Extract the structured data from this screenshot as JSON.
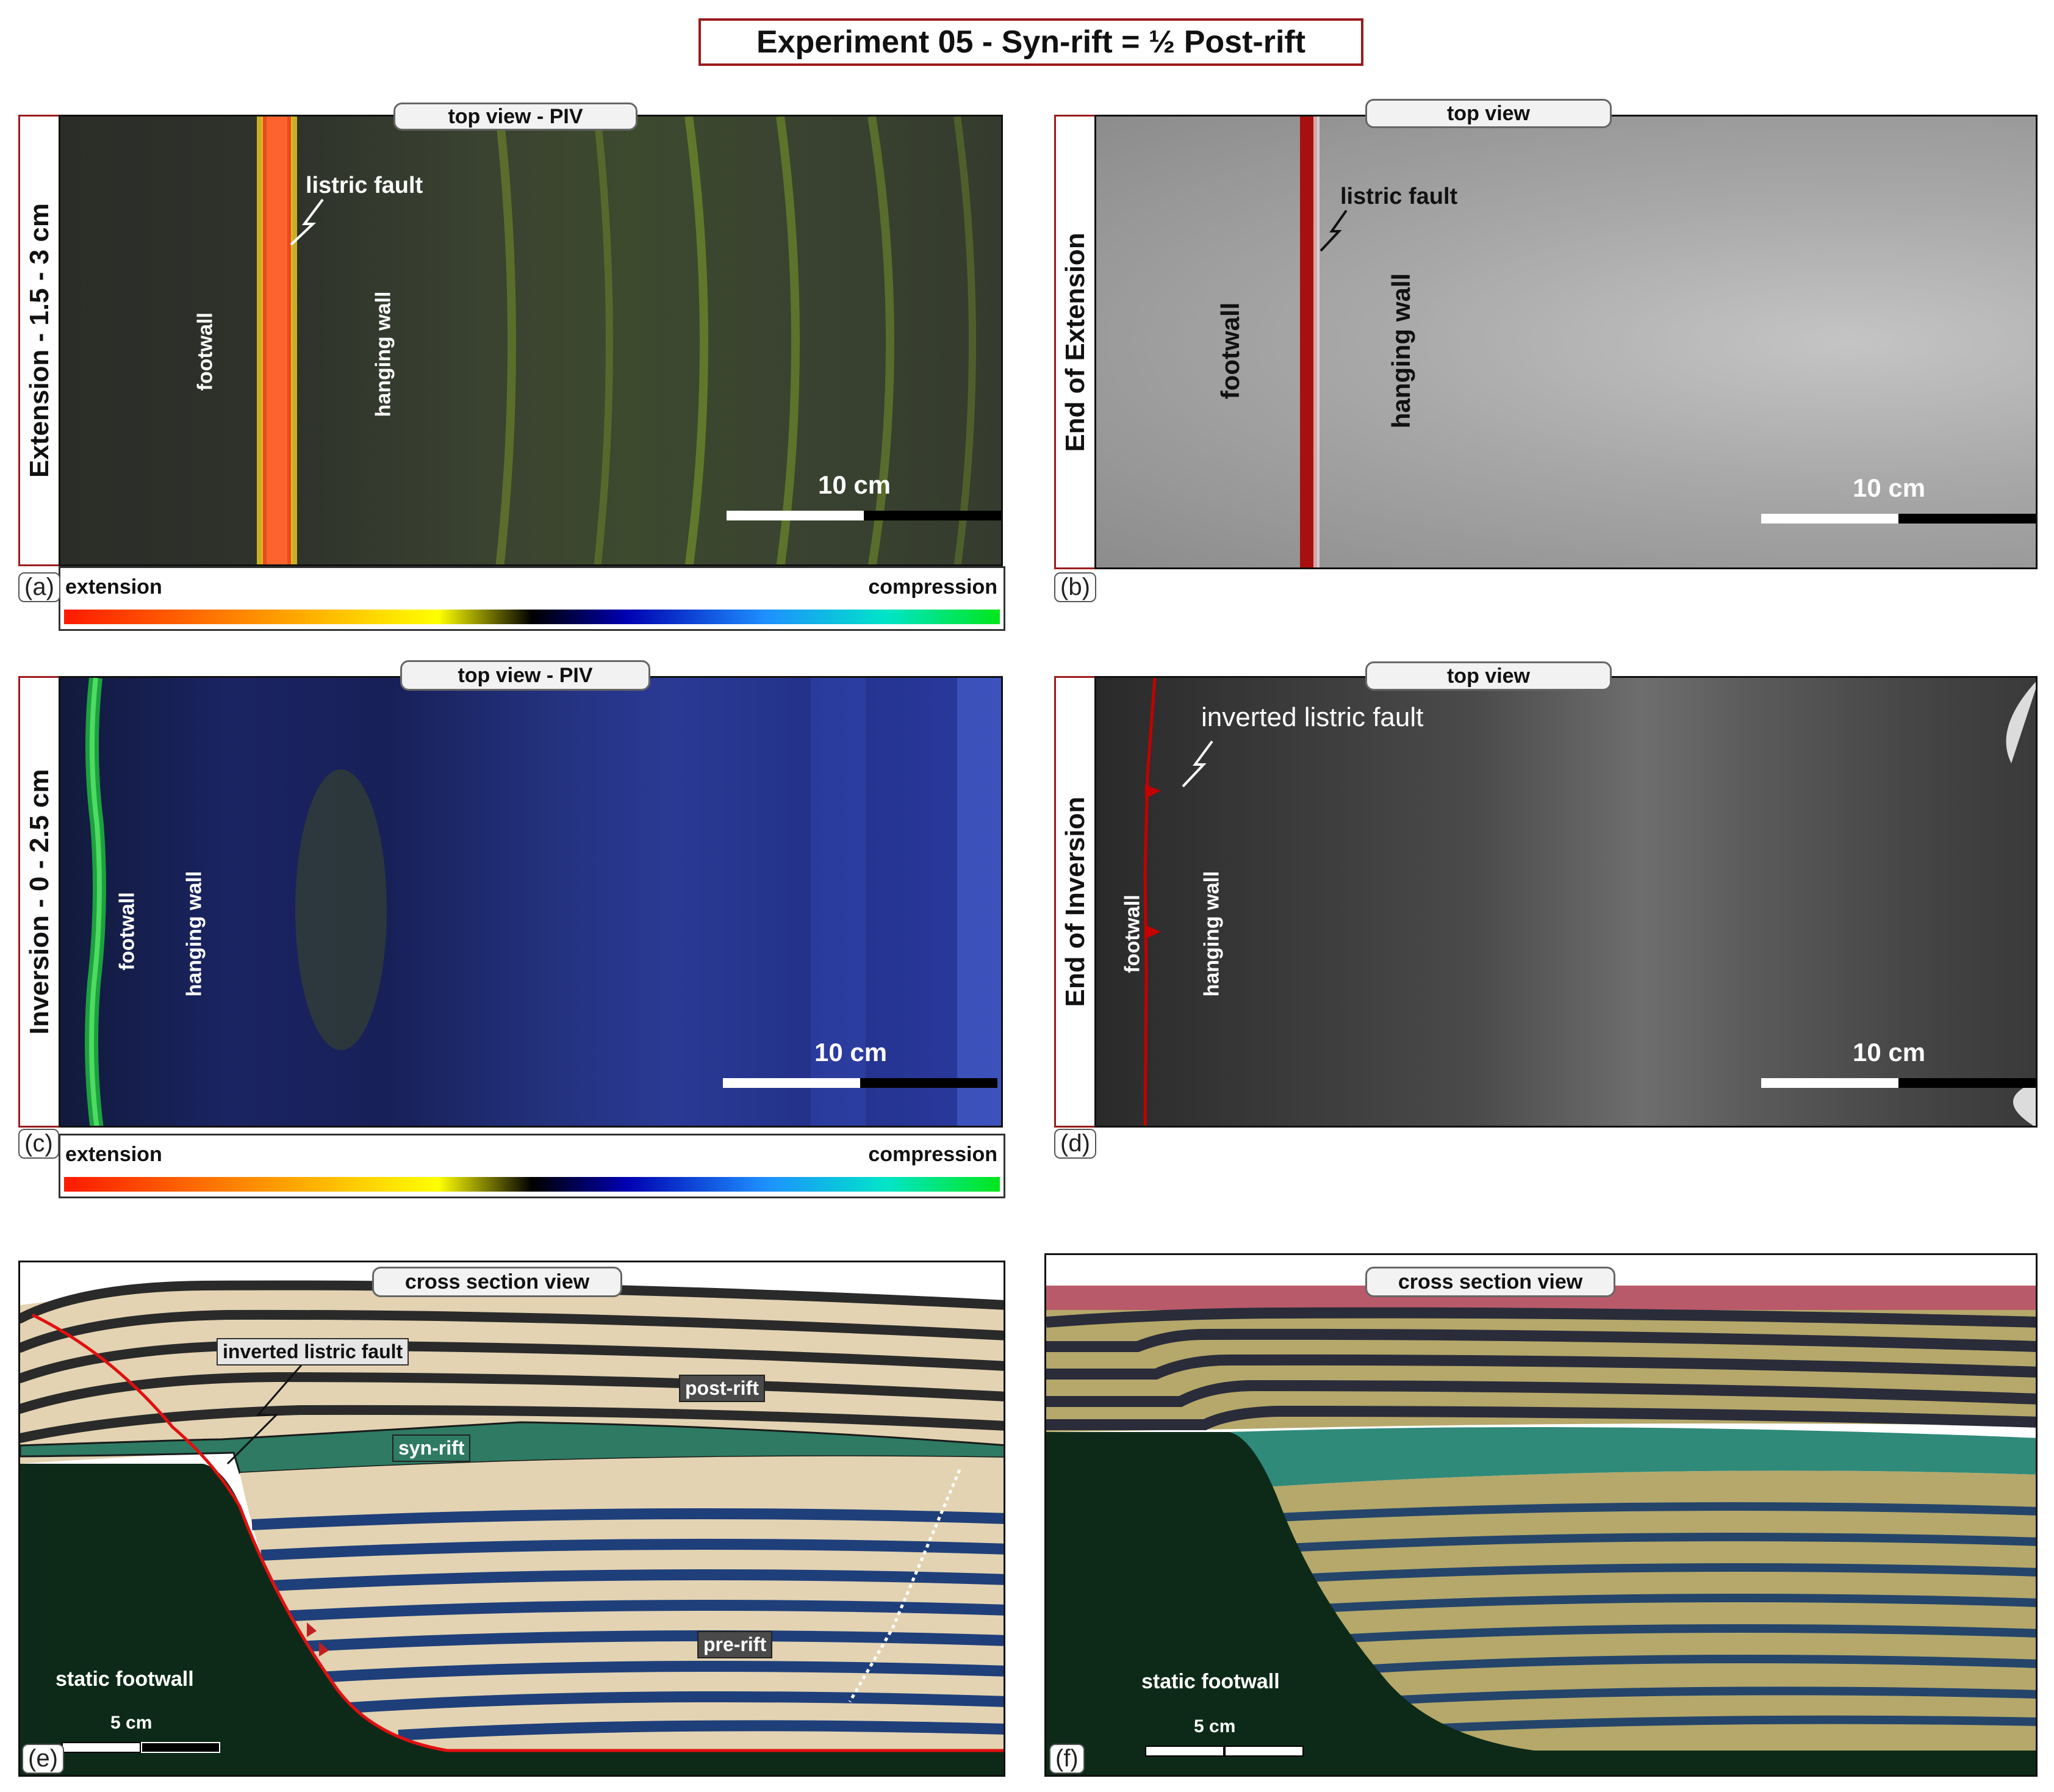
{
  "title": "Experiment 05 - Syn-rift =  ½  Post-rift",
  "row_labels": {
    "a": "Extension - 1.5 - 3 cm",
    "b": "End of Extension",
    "c": "Inversion - 0 - 2.5 cm",
    "d": "End of Inversion"
  },
  "panel_letters": {
    "a": "(a)",
    "b": "(b)",
    "c": "(c)",
    "d": "(d)",
    "e": "(e)",
    "f": "(f)"
  },
  "view_labels": {
    "a": "top view - PIV",
    "b": "top view",
    "c": "top view - PIV",
    "d": "top view",
    "e": "cross section view",
    "f": "cross section view"
  },
  "annotations": {
    "a_fault": "listric fault",
    "a_footwall": "footwall",
    "a_hanging": "hanging wall",
    "b_fault": "listric fault",
    "b_footwall": "footwall",
    "b_hanging": "hanging wall",
    "c_footwall": "footwall",
    "c_hanging": "hanging wall",
    "d_fault": "inverted listric fault",
    "d_footwall": "footwall",
    "d_hanging": "hanging wall",
    "e_fault": "inverted listric fault",
    "e_post": "post-rift",
    "e_syn": "syn-rift",
    "e_pre": "pre-rift",
    "e_static": "static footwall",
    "f_static": "static footwall"
  },
  "scales": {
    "top": "10 cm",
    "section": "5 cm"
  },
  "colorbar": {
    "left": "extension",
    "right": "compression"
  },
  "colors": {
    "frame_red": "#9b1c1c",
    "fault_red": "#cc0000",
    "footwall_green": "#0d2a18",
    "sand": "#e3d3b2",
    "syn_rift": "#2e7a62",
    "pre_rift_blue": "#1f3f7a",
    "post_rift_dark": "#2a2a2a"
  }
}
